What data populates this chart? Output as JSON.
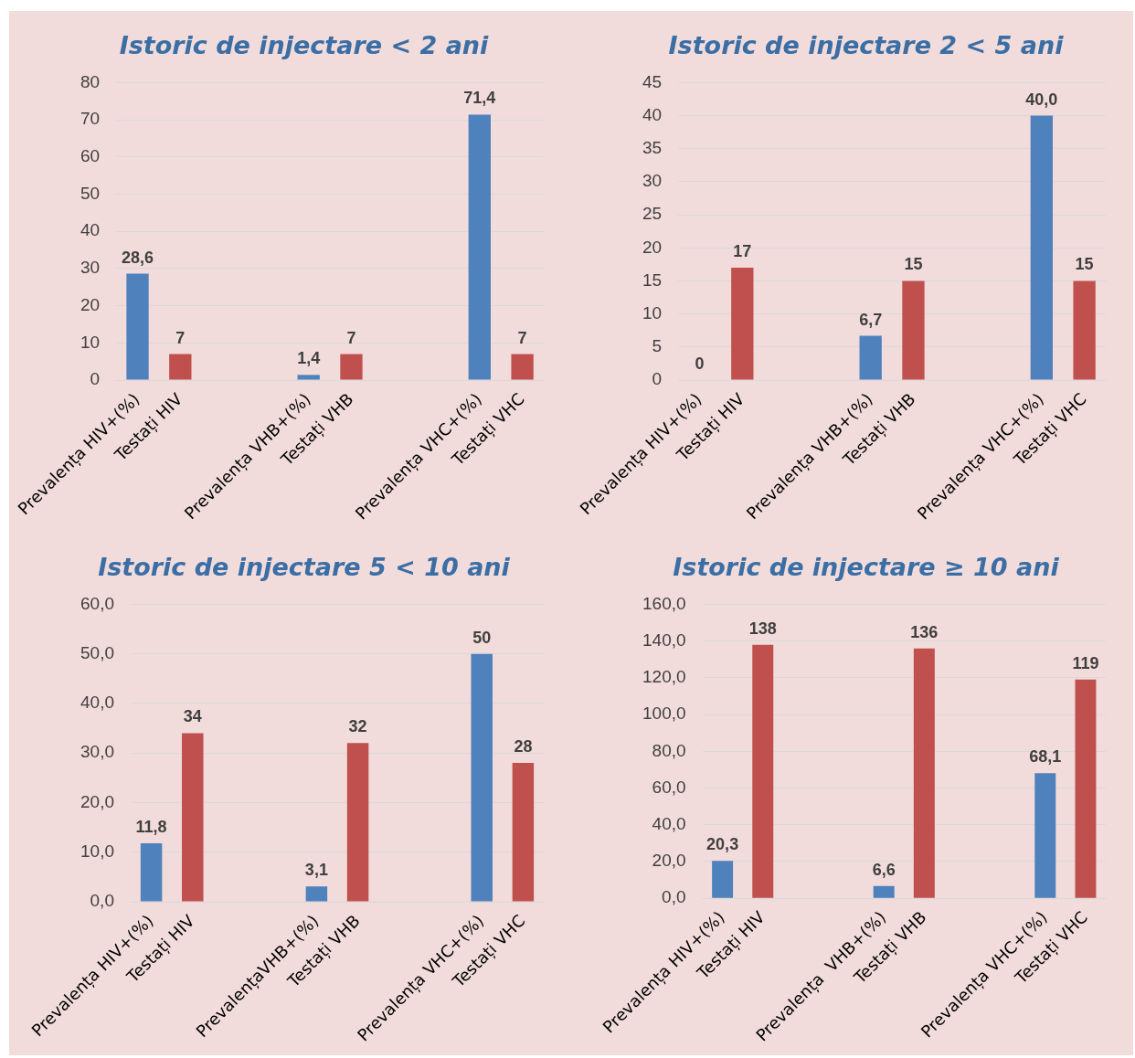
{
  "chart_data": [
    {
      "type": "bar",
      "title": "Istoric de injectare < 2 ani",
      "categories": [
        "Prevalența HIV+(%)",
        "Testați HIV",
        null,
        null,
        "Prevalența VHB+(%)",
        "Testați VHB",
        null,
        null,
        "Prevalența VHC+(%)",
        "Testați VHC"
      ],
      "series": [
        {
          "color": "#4f81bd",
          "values": [
            28.6,
            null,
            null,
            null,
            1.4,
            null,
            null,
            null,
            71.4,
            null
          ],
          "value_labels": [
            "28,6",
            null,
            null,
            null,
            "1,4",
            null,
            null,
            null,
            "71,4",
            null
          ]
        },
        {
          "color": "#c0504d",
          "values": [
            null,
            7,
            null,
            null,
            null,
            7,
            null,
            null,
            null,
            7
          ],
          "value_labels": [
            null,
            "7",
            null,
            null,
            null,
            "7",
            null,
            null,
            null,
            "7"
          ]
        }
      ],
      "ylim": [
        0,
        80
      ],
      "yticks": [
        0,
        10,
        20,
        30,
        40,
        50,
        60,
        70,
        80
      ],
      "grid": "y"
    },
    {
      "type": "bar",
      "title": "Istoric de injectare 2 < 5 ani",
      "categories": [
        "Prevalența HIV+(%)",
        "Testați HIV",
        null,
        null,
        "Prevalența VHB+(%)",
        "Testați VHB",
        null,
        null,
        "Prevalența VHC+(%)",
        "Testați VHC"
      ],
      "series": [
        {
          "color": "#4f81bd",
          "values": [
            0,
            null,
            null,
            null,
            6.7,
            null,
            null,
            null,
            40.0,
            null
          ],
          "value_labels": [
            "0",
            null,
            null,
            null,
            "6,7",
            null,
            null,
            null,
            "40,0",
            null
          ]
        },
        {
          "color": "#c0504d",
          "values": [
            null,
            17,
            null,
            null,
            null,
            15,
            null,
            null,
            null,
            15
          ],
          "value_labels": [
            null,
            "17",
            null,
            null,
            null,
            "15",
            null,
            null,
            null,
            "15"
          ]
        }
      ],
      "ylim": [
        0,
        45
      ],
      "yticks": [
        0,
        5,
        10,
        15,
        20,
        25,
        30,
        35,
        40,
        45
      ],
      "grid": "y"
    },
    {
      "type": "bar",
      "title": "Istoric de injectare 5 < 10 ani",
      "categories": [
        "Prevalența HIV+(%)",
        "Testați HIV",
        null,
        null,
        "PrevalențaVHB+(%)",
        "Testați VHB",
        null,
        null,
        "Prevalența VHC+(%)",
        "Testați VHC"
      ],
      "series": [
        {
          "color": "#4f81bd",
          "values": [
            11.8,
            null,
            null,
            null,
            3.1,
            null,
            null,
            null,
            50,
            null
          ],
          "value_labels": [
            "11,8",
            null,
            null,
            null,
            "3,1",
            null,
            null,
            null,
            "50",
            null
          ]
        },
        {
          "color": "#c0504d",
          "values": [
            null,
            34,
            null,
            null,
            null,
            32,
            null,
            null,
            null,
            28
          ],
          "value_labels": [
            null,
            "34",
            null,
            null,
            null,
            "32",
            null,
            null,
            null,
            "28"
          ]
        }
      ],
      "ylim": [
        0,
        60
      ],
      "yticks": [
        {
          "value": 0,
          "label": "0,0"
        },
        {
          "value": 10,
          "label": "10,0"
        },
        {
          "value": 20,
          "label": "20,0"
        },
        {
          "value": 30,
          "label": "30,0"
        },
        {
          "value": 40,
          "label": "40,0"
        },
        {
          "value": 50,
          "label": "50,0"
        },
        {
          "value": 60,
          "label": "60,0"
        }
      ],
      "grid": "y"
    },
    {
      "type": "bar",
      "title": "Istoric de injectare ≥ 10 ani",
      "categories": [
        "Prevalența HIV+(%)",
        "Testați HIV",
        null,
        null,
        "Prevalența  VHB+(%)",
        "Testați VHB",
        null,
        null,
        "Prevalența VHC+(%)",
        "Testați VHC"
      ],
      "series": [
        {
          "color": "#4f81bd",
          "values": [
            20.3,
            null,
            null,
            null,
            6.6,
            null,
            null,
            null,
            68.1,
            null
          ],
          "value_labels": [
            "20,3",
            null,
            null,
            null,
            "6,6",
            null,
            null,
            null,
            "68,1",
            null
          ]
        },
        {
          "color": "#c0504d",
          "values": [
            null,
            138,
            null,
            null,
            null,
            136,
            null,
            null,
            null,
            119
          ],
          "value_labels": [
            null,
            "138",
            null,
            null,
            null,
            "136",
            null,
            null,
            null,
            "119"
          ]
        }
      ],
      "ylim": [
        0,
        160
      ],
      "yticks": [
        {
          "value": 0,
          "label": "0,0"
        },
        {
          "value": 20,
          "label": "20,0"
        },
        {
          "value": 40,
          "label": "40,0"
        },
        {
          "value": 60,
          "label": "60,0"
        },
        {
          "value": 80,
          "label": "80,0"
        },
        {
          "value": 100,
          "label": "100,0"
        },
        {
          "value": 120,
          "label": "120,0"
        },
        {
          "value": 140,
          "label": "140,0"
        },
        {
          "value": 160,
          "label": "160,0"
        }
      ],
      "grid": "y"
    }
  ]
}
